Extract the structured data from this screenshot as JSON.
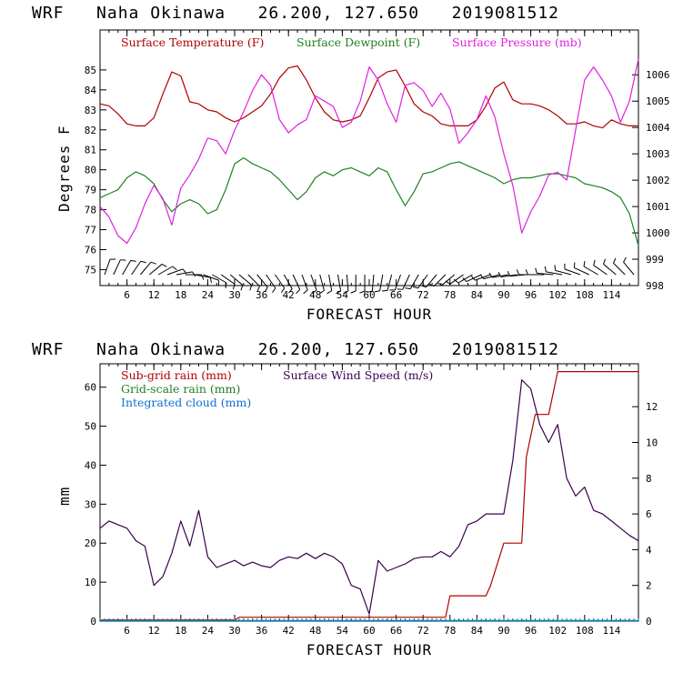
{
  "chart_data": [
    {
      "type": "line",
      "title": "WRF   Naha Okinawa   26.200, 127.650   2019081512",
      "xlabel": "FORECAST HOUR",
      "ylabel": "Degrees F",
      "xlim": [
        0,
        120
      ],
      "ylim": [
        74.2,
        87
      ],
      "y2lim": [
        998,
        1007.7
      ],
      "xticks": [
        6,
        12,
        18,
        24,
        30,
        36,
        42,
        48,
        54,
        60,
        66,
        72,
        78,
        84,
        90,
        96,
        102,
        108,
        114
      ],
      "xtick_labels": [
        "6",
        "12",
        "18",
        "24",
        "30",
        "36",
        "42",
        "48",
        "54",
        "60",
        "66",
        "72",
        "78",
        "84",
        "90",
        "96",
        "102",
        "108",
        "114"
      ],
      "yticks": [
        75,
        76,
        77,
        78,
        79,
        80,
        81,
        82,
        83,
        84,
        85
      ],
      "yticks_labels": [
        "75",
        "76",
        "77",
        "78",
        "79",
        "80",
        "81",
        "82",
        "83",
        "84",
        "85"
      ],
      "y2ticks": [
        998,
        999,
        1000,
        1001,
        1002,
        1003,
        1004,
        1005,
        1006
      ],
      "y2ticks_labels": [
        "998",
        "999",
        "1000",
        "1001",
        "1002",
        "1003",
        "1004",
        "1005",
        "1006"
      ],
      "legend_placement": "top",
      "series": [
        {
          "name": "Surface Temperature (F)",
          "color": "#b00000",
          "axis": "left",
          "x": [
            0,
            2,
            4,
            6,
            8,
            10,
            12,
            14,
            16,
            18,
            20,
            22,
            24,
            26,
            28,
            30,
            32,
            34,
            36,
            38,
            40,
            42,
            44,
            46,
            48,
            50,
            52,
            54,
            56,
            58,
            60,
            62,
            64,
            66,
            68,
            70,
            72,
            74,
            76,
            78,
            80,
            82,
            84,
            86,
            88,
            90,
            92,
            94,
            96,
            98,
            100,
            102,
            104,
            106,
            108,
            110,
            112,
            114,
            116,
            118,
            120
          ],
          "values": [
            83.3,
            83.2,
            82.8,
            82.3,
            82.2,
            82.2,
            82.6,
            83.8,
            84.9,
            84.7,
            83.4,
            83.3,
            83.0,
            82.9,
            82.6,
            82.4,
            82.6,
            82.9,
            83.2,
            83.8,
            84.6,
            85.1,
            85.2,
            84.5,
            83.6,
            82.9,
            82.5,
            82.4,
            82.5,
            82.7,
            83.6,
            84.6,
            84.9,
            85.0,
            84.2,
            83.3,
            82.9,
            82.7,
            82.3,
            82.2,
            82.2,
            82.2,
            82.5,
            83.2,
            84.1,
            84.4,
            83.5,
            83.3,
            83.3,
            83.2,
            83.0,
            82.7,
            82.3,
            82.3,
            82.4,
            82.2,
            82.1,
            82.5,
            82.3,
            82.2,
            82.2
          ]
        },
        {
          "name": "Surface Dewpoint (F)",
          "color": "#208020",
          "axis": "left",
          "x": [
            0,
            2,
            4,
            6,
            8,
            10,
            12,
            14,
            16,
            18,
            20,
            22,
            24,
            26,
            28,
            30,
            32,
            34,
            36,
            38,
            40,
            42,
            44,
            46,
            48,
            50,
            52,
            54,
            56,
            58,
            60,
            62,
            64,
            66,
            68,
            70,
            72,
            74,
            76,
            78,
            80,
            82,
            84,
            86,
            88,
            90,
            92,
            94,
            96,
            98,
            100,
            102,
            104,
            106,
            108,
            110,
            112,
            114,
            116,
            118,
            120
          ],
          "values": [
            78.6,
            78.8,
            79.0,
            79.6,
            79.9,
            79.7,
            79.3,
            78.5,
            77.9,
            78.3,
            78.5,
            78.3,
            77.8,
            78.0,
            79.0,
            80.3,
            80.6,
            80.3,
            80.1,
            79.9,
            79.5,
            79.0,
            78.5,
            78.9,
            79.6,
            79.9,
            79.7,
            80.0,
            80.1,
            79.9,
            79.7,
            80.1,
            79.9,
            79.0,
            78.2,
            78.9,
            79.8,
            79.9,
            80.1,
            80.3,
            80.4,
            80.2,
            80.0,
            79.8,
            79.6,
            79.3,
            79.5,
            79.6,
            79.6,
            79.7,
            79.8,
            79.8,
            79.7,
            79.6,
            79.3,
            79.2,
            79.1,
            78.9,
            78.6,
            77.8,
            76.2
          ]
        },
        {
          "name": "Surface Pressure (mb)",
          "color": "#e020e0",
          "axis": "right",
          "x": [
            0,
            2,
            4,
            6,
            8,
            10,
            12,
            14,
            16,
            18,
            20,
            22,
            24,
            26,
            28,
            30,
            32,
            34,
            36,
            38,
            40,
            42,
            44,
            46,
            48,
            50,
            52,
            54,
            56,
            58,
            60,
            62,
            64,
            66,
            68,
            70,
            72,
            74,
            76,
            78,
            80,
            82,
            84,
            86,
            88,
            90,
            92,
            94,
            96,
            98,
            100,
            102,
            104,
            106,
            108,
            110,
            112,
            114,
            116,
            118,
            120
          ],
          "values": [
            1001.0,
            1000.6,
            999.9,
            999.6,
            1000.2,
            1001.1,
            1001.8,
            1001.3,
            1000.3,
            1001.7,
            1002.2,
            1002.8,
            1003.6,
            1003.5,
            1003.0,
            1003.9,
            1004.6,
            1005.4,
            1006.0,
            1005.6,
            1004.3,
            1003.8,
            1004.1,
            1004.3,
            1005.2,
            1005.0,
            1004.8,
            1004.0,
            1004.2,
            1005.0,
            1006.3,
            1005.8,
            1004.9,
            1004.2,
            1005.6,
            1005.7,
            1005.4,
            1004.8,
            1005.3,
            1004.7,
            1003.4,
            1003.8,
            1004.3,
            1005.2,
            1004.4,
            1003.0,
            1001.8,
            1000.0,
            1000.8,
            1001.4,
            1002.2,
            1002.3,
            1002.0,
            1003.9,
            1005.8,
            1006.3,
            1005.8,
            1005.2,
            1004.2,
            1005.0,
            1006.6
          ]
        }
      ],
      "wind_barbs": {
        "x": [
          1,
          3,
          5,
          7,
          9,
          11,
          13,
          15,
          17,
          19,
          21,
          23,
          25,
          27,
          29,
          31,
          33,
          35,
          37,
          39,
          41,
          43,
          45,
          47,
          49,
          51,
          53,
          55,
          57,
          59,
          61,
          63,
          65,
          67,
          69,
          71,
          73,
          75,
          77,
          79,
          81,
          83,
          85,
          87,
          89,
          91,
          93,
          95,
          97,
          99,
          101,
          103,
          105,
          107,
          109,
          111,
          113,
          115,
          117,
          119
        ],
        "direction_deg": [
          20,
          25,
          30,
          35,
          40,
          50,
          60,
          70,
          80,
          90,
          100,
          110,
          120,
          125,
          130,
          130,
          135,
          140,
          145,
          145,
          150,
          155,
          160,
          160,
          165,
          170,
          170,
          175,
          180,
          180,
          185,
          190,
          195,
          200,
          205,
          210,
          215,
          220,
          225,
          230,
          235,
          240,
          245,
          250,
          255,
          260,
          262,
          265,
          270,
          270,
          275,
          280,
          285,
          290,
          295,
          300,
          305,
          310,
          315,
          320
        ],
        "color": "#000000"
      }
    },
    {
      "type": "line",
      "title": "WRF   Naha Okinawa   26.200, 127.650   2019081512",
      "xlabel": "FORECAST HOUR",
      "ylabel": "mm",
      "xlim": [
        0,
        120
      ],
      "ylim": [
        0,
        66
      ],
      "y2lim": [
        0,
        14.4
      ],
      "xticks": [
        6,
        12,
        18,
        24,
        30,
        36,
        42,
        48,
        54,
        60,
        66,
        72,
        78,
        84,
        90,
        96,
        102,
        108,
        114
      ],
      "xtick_labels": [
        "6",
        "12",
        "18",
        "24",
        "30",
        "36",
        "42",
        "48",
        "54",
        "60",
        "66",
        "72",
        "78",
        "84",
        "90",
        "96",
        "102",
        "108",
        "114"
      ],
      "yticks": [
        0,
        10,
        20,
        30,
        40,
        50,
        60
      ],
      "yticks_labels": [
        "0",
        "10",
        "20",
        "30",
        "40",
        "50",
        "60"
      ],
      "y2ticks": [
        0,
        2,
        4,
        6,
        8,
        10,
        12
      ],
      "y2ticks_labels": [
        "0",
        "2",
        "4",
        "6",
        "8",
        "10",
        "12"
      ],
      "legend_placement": "top",
      "series": [
        {
          "name": "Sub-grid rain (mm)",
          "color": "#b00000",
          "axis": "left",
          "x": [
            0,
            30,
            31,
            77,
            78,
            86,
            87,
            90,
            90.5,
            91,
            94,
            95,
            97,
            98,
            100,
            102,
            120
          ],
          "values": [
            0.3,
            0.3,
            1.0,
            1.0,
            6.5,
            6.5,
            9,
            20,
            20,
            20,
            20,
            42,
            53,
            53,
            53,
            64,
            64
          ]
        },
        {
          "name": "Grid-scale rain (mm)",
          "color": "#208020",
          "axis": "left",
          "x": [
            0,
            120
          ],
          "values": [
            0.15,
            0.15
          ]
        },
        {
          "name": "Integrated cloud (mm)",
          "color": "#1070d0",
          "axis": "left",
          "x": [
            0,
            120
          ],
          "values": [
            0,
            0
          ]
        },
        {
          "name": "Surface Wind Speed (m/s)",
          "color": "#3a0050",
          "axis": "right",
          "x": [
            0,
            2,
            4,
            6,
            8,
            10,
            12,
            14,
            16,
            18,
            20,
            22,
            24,
            26,
            28,
            30,
            32,
            34,
            36,
            38,
            40,
            42,
            44,
            46,
            48,
            50,
            52,
            54,
            56,
            58,
            60,
            62,
            64,
            66,
            68,
            70,
            72,
            74,
            76,
            78,
            80,
            82,
            84,
            86,
            88,
            90,
            92,
            94,
            96,
            98,
            100,
            102,
            104,
            106,
            108,
            110,
            112,
            114,
            116,
            118,
            120
          ],
          "values": [
            5.2,
            5.6,
            5.4,
            5.2,
            4.5,
            4.2,
            2.0,
            2.5,
            3.8,
            5.6,
            4.2,
            6.2,
            3.6,
            3.0,
            3.2,
            3.4,
            3.1,
            3.3,
            3.1,
            3.0,
            3.4,
            3.6,
            3.5,
            3.8,
            3.5,
            3.8,
            3.6,
            3.2,
            2.0,
            1.8,
            0.4,
            3.4,
            2.8,
            3.0,
            3.2,
            3.5,
            3.6,
            3.6,
            3.9,
            3.6,
            4.2,
            5.4,
            5.6,
            6.0,
            6.0,
            6.0,
            9.0,
            13.5,
            13.0,
            11.0,
            10.0,
            11.0,
            8.0,
            7.0,
            7.5,
            6.2,
            6.0,
            5.6,
            5.2,
            4.8,
            4.5
          ]
        }
      ]
    }
  ]
}
